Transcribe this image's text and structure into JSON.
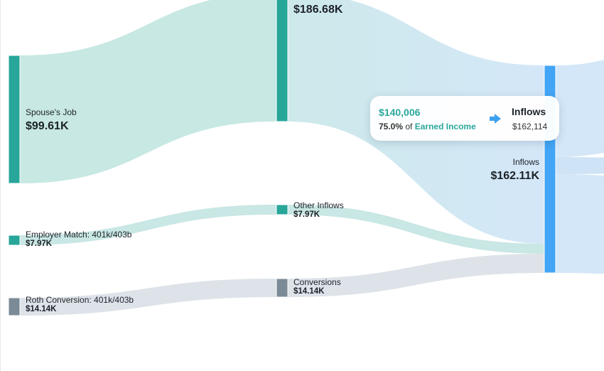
{
  "colors": {
    "earned_node": "#27a699",
    "earned_link": "#c7e8e3",
    "other_link": "#c9e7e4",
    "conversion_node": "#7a8a96",
    "conversion_link": "#dde3e8",
    "inflows_node": "#42a5f5",
    "big_link_start": "#cde9ea",
    "big_link_end": "#d4e7f8",
    "accent_text": "#2aa89c"
  },
  "chart_data": {
    "type": "sankey",
    "nodes": [
      {
        "id": "spouse",
        "name": "Spouse's Job",
        "value_label": "$99.61K",
        "value": 99610
      },
      {
        "id": "match",
        "name": "Employer Match: 401k/403b",
        "value_label": "$7.97K",
        "value": 7970
      },
      {
        "id": "roth",
        "name": "Roth Conversion: 401k/403b",
        "value_label": "$14.14K",
        "value": 14140
      },
      {
        "id": "earned",
        "name": "",
        "value_label": "$186.68K",
        "value": 186680
      },
      {
        "id": "other",
        "name": "Other Inflows",
        "value_label": "$7.97K",
        "value": 7970
      },
      {
        "id": "conv",
        "name": "Conversions",
        "value_label": "$14.14K",
        "value": 14140
      },
      {
        "id": "inflows",
        "name": "Inflows",
        "value_label": "$162.11K",
        "value": 162114
      }
    ],
    "links": [
      {
        "source": "spouse",
        "target": "earned",
        "value": 99610
      },
      {
        "source": "match",
        "target": "other",
        "value": 7970
      },
      {
        "source": "roth",
        "target": "conv",
        "value": 14140
      },
      {
        "source": "earned",
        "target": "inflows",
        "value": 140006
      },
      {
        "source": "other",
        "target": "inflows",
        "value": 7970
      },
      {
        "source": "conv",
        "target": "inflows",
        "value": 14140
      }
    ]
  },
  "tooltip": {
    "amount": "$140,006",
    "percent": "75.0%",
    "of_text": "of",
    "source": "Earned Income",
    "arrow_icon": "arrow-right-icon",
    "target": "Inflows",
    "target_value": "$162,114"
  }
}
